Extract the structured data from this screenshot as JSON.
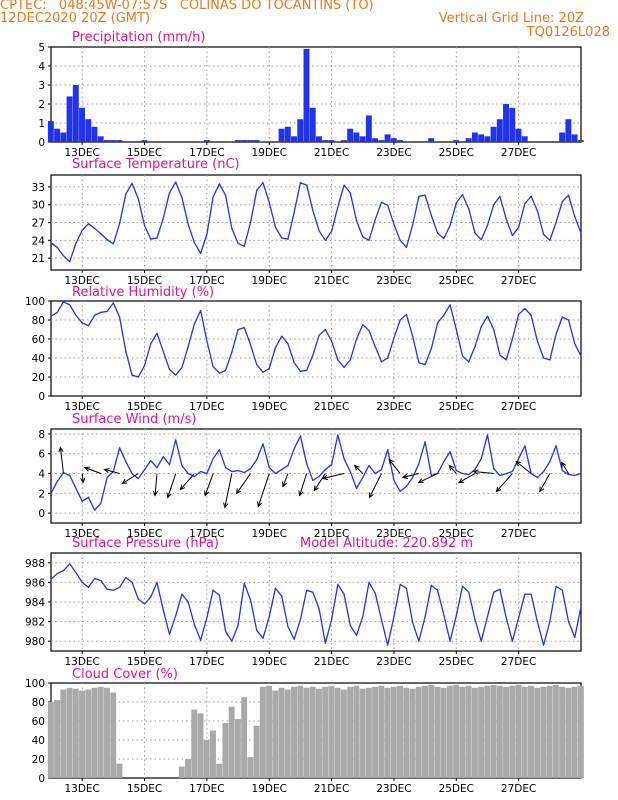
{
  "header": {
    "station_line": "CPTEC:   048:45W-07:57S   COLINAS DO TOCANTINS (TO)",
    "run_line": "12DEC2020 20Z (GMT)",
    "grid_line": "Vertical Grid Line: 20Z",
    "model_code": "TQ0126L028"
  },
  "colors": {
    "header": "#e8781e",
    "title": "#e0148c",
    "series": "#2233ee",
    "cloud": "#a9a9a9",
    "arrows": "#000000",
    "grid": "#9a9a9a"
  },
  "x_axis": {
    "tick_labels": [
      "13DEC",
      "15DEC",
      "17DEC",
      "19DEC",
      "21DEC",
      "23DEC",
      "25DEC",
      "27DEC"
    ]
  },
  "chart_data": [
    {
      "type": "bar",
      "title": "Precipitation (mm/h)",
      "ylim": [
        0,
        5
      ],
      "yticks": [
        0,
        1,
        2,
        3,
        4,
        5
      ],
      "color": "#2233ee",
      "x": [
        0.0,
        0.2,
        0.4,
        0.6,
        0.8,
        1.0,
        1.2,
        1.4,
        1.6,
        1.8,
        2.0,
        2.2,
        3.0,
        5.0,
        6.0,
        6.2,
        6.4,
        6.6,
        7.4,
        7.6,
        7.8,
        8.0,
        8.2,
        8.4,
        8.6,
        8.8,
        9.0,
        9.4,
        9.6,
        9.8,
        10.0,
        10.2,
        10.4,
        10.6,
        10.8,
        11.0,
        11.2,
        12.2,
        13.0,
        13.4,
        13.6,
        13.8,
        14.0,
        14.2,
        14.4,
        14.6,
        14.8,
        15.0,
        15.2,
        16.4,
        16.6,
        16.8,
        17.0
      ],
      "values": [
        1.1,
        0.7,
        0.5,
        2.4,
        3.0,
        1.8,
        1.2,
        0.8,
        0.3,
        0.1,
        0.1,
        0.1,
        0.1,
        0.1,
        0.1,
        0.1,
        0.1,
        0.1,
        0.7,
        0.8,
        0.3,
        1.2,
        4.9,
        1.8,
        0.3,
        0.1,
        0.1,
        0.1,
        0.7,
        0.5,
        0.3,
        1.4,
        0.2,
        0.1,
        0.4,
        0.2,
        0.1,
        0.2,
        0.1,
        0.2,
        0.5,
        0.4,
        0.3,
        0.8,
        1.2,
        2.0,
        1.8,
        0.7,
        0.3,
        0.5,
        1.2,
        0.4,
        0.1
      ]
    },
    {
      "type": "line",
      "title": "Surface Temperature (nC)",
      "ylim": [
        19,
        35
      ],
      "yticks": [
        21,
        24,
        27,
        30,
        33
      ],
      "color": "#2233ee",
      "x": [
        0.0,
        0.2,
        0.4,
        0.6,
        0.8,
        1.0,
        1.2,
        1.4,
        1.6,
        1.8,
        2.0,
        2.2,
        2.4,
        2.6,
        2.8,
        3.0,
        3.2,
        3.4,
        3.6,
        3.8,
        4.0,
        4.2,
        4.4,
        4.6,
        4.8,
        5.0,
        5.2,
        5.4,
        5.6,
        5.8,
        6.0,
        6.2,
        6.4,
        6.6,
        6.8,
        7.0,
        7.2,
        7.4,
        7.6,
        7.8,
        8.0,
        8.2,
        8.4,
        8.6,
        8.8,
        9.0,
        9.2,
        9.4,
        9.6,
        9.8,
        10.0,
        10.2,
        10.4,
        10.6,
        10.8,
        11.0,
        11.2,
        11.4,
        11.6,
        11.8,
        12.0,
        12.2,
        12.4,
        12.6,
        12.8,
        13.0,
        13.2,
        13.4,
        13.6,
        13.8,
        14.0,
        14.2,
        14.4,
        14.6,
        14.8,
        15.0,
        15.2,
        15.4,
        15.6,
        15.8,
        16.0,
        16.2,
        16.4,
        16.6,
        16.8,
        17.0
      ],
      "values": [
        23.6,
        22.8,
        21.4,
        20.4,
        23.5,
        25.7,
        26.8,
        26.0,
        25.1,
        24.1,
        23.4,
        26.8,
        31.8,
        33.6,
        31.0,
        26.5,
        24.2,
        24.4,
        27.7,
        32.0,
        33.8,
        31.2,
        26.7,
        23.6,
        21.8,
        25.0,
        31.3,
        33.5,
        31.6,
        26.0,
        23.5,
        23.0,
        27.0,
        32.4,
        33.7,
        30.4,
        26.2,
        24.4,
        24.2,
        28.7,
        33.7,
        33.3,
        29.0,
        25.6,
        24.0,
        25.5,
        29.6,
        33.3,
        32.0,
        27.3,
        24.6,
        24.0,
        27.5,
        30.4,
        29.9,
        26.7,
        24.0,
        22.8,
        26.6,
        31.4,
        31.6,
        28.2,
        25.2,
        24.3,
        26.5,
        30.3,
        31.7,
        29.3,
        25.2,
        24.1,
        26.5,
        30.0,
        31.4,
        27.6,
        24.8,
        26.2,
        30.2,
        31.4,
        29.0,
        25.0,
        24.0,
        27.0,
        30.5,
        31.6,
        28.0,
        25.2
      ]
    },
    {
      "type": "line",
      "title": "Relative Humidity (%)",
      "ylim": [
        0,
        100
      ],
      "yticks": [
        0,
        20,
        40,
        60,
        80,
        100
      ],
      "color": "#2233ee",
      "x": [
        0.0,
        0.2,
        0.4,
        0.6,
        0.8,
        1.0,
        1.2,
        1.4,
        1.6,
        1.8,
        2.0,
        2.2,
        2.4,
        2.6,
        2.8,
        3.0,
        3.2,
        3.4,
        3.6,
        3.8,
        4.0,
        4.2,
        4.4,
        4.6,
        4.8,
        5.0,
        5.2,
        5.4,
        5.6,
        5.8,
        6.0,
        6.2,
        6.4,
        6.6,
        6.8,
        7.0,
        7.2,
        7.4,
        7.6,
        7.8,
        8.0,
        8.2,
        8.4,
        8.6,
        8.8,
        9.0,
        9.2,
        9.4,
        9.6,
        9.8,
        10.0,
        10.2,
        10.4,
        10.6,
        10.8,
        11.0,
        11.2,
        11.4,
        11.6,
        11.8,
        12.0,
        12.2,
        12.4,
        12.6,
        12.8,
        13.0,
        13.2,
        13.4,
        13.6,
        13.8,
        14.0,
        14.2,
        14.4,
        14.6,
        14.8,
        15.0,
        15.2,
        15.4,
        15.6,
        15.8,
        16.0,
        16.2,
        16.4,
        16.6,
        16.8,
        17.0
      ],
      "values": [
        84,
        88,
        99,
        96,
        85,
        77,
        74,
        85,
        88,
        89,
        98,
        83,
        47,
        22,
        20,
        32,
        55,
        66,
        47,
        28,
        22,
        30,
        52,
        76,
        90,
        58,
        31,
        24,
        27,
        46,
        70,
        72,
        54,
        33,
        25,
        29,
        51,
        63,
        55,
        35,
        26,
        27,
        43,
        64,
        70,
        58,
        38,
        30,
        38,
        60,
        75,
        69,
        52,
        36,
        40,
        61,
        80,
        86,
        63,
        35,
        33,
        50,
        77,
        85,
        96,
        70,
        42,
        36,
        52,
        73,
        84,
        70,
        43,
        38,
        60,
        86,
        92,
        85,
        58,
        40,
        38,
        65,
        83,
        80,
        55,
        42
      ]
    },
    {
      "type": "line",
      "title": "Surface Wind (m/s)",
      "ylim": [
        -1,
        8.5
      ],
      "yticks": [
        0,
        2,
        4,
        6,
        8
      ],
      "color": "#2233ee",
      "x": [
        0.0,
        0.2,
        0.4,
        0.6,
        0.8,
        1.0,
        1.2,
        1.4,
        1.6,
        1.8,
        2.0,
        2.2,
        2.4,
        2.6,
        2.8,
        3.0,
        3.2,
        3.4,
        3.6,
        3.8,
        4.0,
        4.2,
        4.4,
        4.6,
        4.8,
        5.0,
        5.2,
        5.4,
        5.6,
        5.8,
        6.0,
        6.2,
        6.4,
        6.6,
        6.8,
        7.0,
        7.2,
        7.4,
        7.6,
        7.8,
        8.0,
        8.2,
        8.4,
        8.6,
        8.8,
        9.0,
        9.2,
        9.4,
        9.6,
        9.8,
        10.0,
        10.2,
        10.4,
        10.6,
        10.8,
        11.0,
        11.2,
        11.4,
        11.6,
        11.8,
        12.0,
        12.2,
        12.4,
        12.6,
        12.8,
        13.0,
        13.2,
        13.4,
        13.6,
        13.8,
        14.0,
        14.2,
        14.4,
        14.6,
        14.8,
        15.0,
        15.2,
        15.4,
        15.6,
        15.8,
        16.0,
        16.2,
        16.4,
        16.6,
        16.8,
        17.0
      ],
      "values": [
        2.0,
        3.2,
        4.1,
        3.8,
        2.5,
        1.2,
        1.6,
        0.3,
        1.0,
        3.6,
        4.2,
        6.6,
        5.2,
        4.0,
        3.5,
        4.4,
        5.3,
        4.6,
        5.7,
        4.9,
        7.4,
        4.8,
        4.0,
        3.7,
        4.2,
        4.0,
        5.5,
        6.4,
        4.6,
        4.2,
        4.3,
        4.1,
        4.5,
        5.4,
        7.0,
        4.6,
        4.0,
        4.4,
        4.8,
        6.5,
        7.8,
        5.0,
        3.3,
        3.7,
        4.4,
        4.9,
        7.9,
        5.5,
        4.2,
        2.5,
        3.6,
        4.8,
        4.0,
        4.4,
        6.4,
        3.3,
        2.2,
        2.7,
        3.6,
        5.0,
        7.2,
        3.8,
        4.0,
        5.2,
        6.2,
        4.3,
        4.0,
        3.9,
        4.4,
        5.5,
        7.9,
        4.5,
        3.8,
        4.0,
        4.2,
        5.5,
        6.8,
        4.0,
        3.6,
        4.2,
        5.2,
        6.8,
        4.3,
        3.9,
        3.8,
        4.0
      ],
      "wind_vectors": [
        {
          "x": 0.4,
          "u": -0.3,
          "v": 2.6
        },
        {
          "x": 1.0,
          "u": 0.1,
          "v": -0.9
        },
        {
          "x": 1.6,
          "u": -1.6,
          "v": 0.6
        },
        {
          "x": 2.2,
          "u": -1.5,
          "v": 0.4
        },
        {
          "x": 2.8,
          "u": -1.6,
          "v": -1.0
        },
        {
          "x": 3.4,
          "u": -0.2,
          "v": -2.2
        },
        {
          "x": 4.0,
          "u": -0.8,
          "v": -2.4
        },
        {
          "x": 4.6,
          "u": -1.4,
          "v": -1.6
        },
        {
          "x": 5.2,
          "u": -0.8,
          "v": -2.2
        },
        {
          "x": 5.8,
          "u": -0.7,
          "v": -3.4
        },
        {
          "x": 6.4,
          "u": -1.4,
          "v": -2.0
        },
        {
          "x": 7.0,
          "u": -1.1,
          "v": -3.3
        },
        {
          "x": 7.6,
          "u": -0.5,
          "v": -1.3
        },
        {
          "x": 8.2,
          "u": -0.7,
          "v": -2.2
        },
        {
          "x": 8.8,
          "u": -1.1,
          "v": -1.7
        },
        {
          "x": 9.4,
          "u": -2.1,
          "v": -0.5
        },
        {
          "x": 10.0,
          "u": -0.8,
          "v": 0.8
        },
        {
          "x": 10.6,
          "u": -1.2,
          "v": -2.4
        },
        {
          "x": 11.2,
          "u": -1.1,
          "v": 1.4
        },
        {
          "x": 11.8,
          "u": -1.6,
          "v": -0.4
        },
        {
          "x": 12.4,
          "u": -1.9,
          "v": -0.9
        },
        {
          "x": 13.0,
          "u": -0.7,
          "v": 0.8
        },
        {
          "x": 13.6,
          "u": -1.6,
          "v": -0.9
        },
        {
          "x": 14.2,
          "u": -2.0,
          "v": 0.2
        },
        {
          "x": 14.8,
          "u": -1.6,
          "v": -1.8
        },
        {
          "x": 15.4,
          "u": -1.5,
          "v": 1.2
        },
        {
          "x": 16.0,
          "u": -1.0,
          "v": -1.8
        },
        {
          "x": 16.6,
          "u": -0.7,
          "v": 1.1
        }
      ]
    },
    {
      "type": "line",
      "title": "Surface Pressure (hPa)",
      "subtitle": "Model Altitude: 220.892 m",
      "ylim": [
        979.0,
        989.0
      ],
      "yticks": [
        980,
        982,
        984,
        986,
        988
      ],
      "color": "#2233ee",
      "x": [
        0.0,
        0.2,
        0.4,
        0.6,
        0.8,
        1.0,
        1.2,
        1.4,
        1.6,
        1.8,
        2.0,
        2.2,
        2.4,
        2.6,
        2.8,
        3.0,
        3.2,
        3.4,
        3.6,
        3.8,
        4.0,
        4.2,
        4.4,
        4.6,
        4.8,
        5.0,
        5.2,
        5.4,
        5.6,
        5.8,
        6.0,
        6.2,
        6.4,
        6.6,
        6.8,
        7.0,
        7.2,
        7.4,
        7.6,
        7.8,
        8.0,
        8.2,
        8.4,
        8.6,
        8.8,
        9.0,
        9.2,
        9.4,
        9.6,
        9.8,
        10.0,
        10.2,
        10.4,
        10.6,
        10.8,
        11.0,
        11.2,
        11.4,
        11.6,
        11.8,
        12.0,
        12.2,
        12.4,
        12.6,
        12.8,
        13.0,
        13.2,
        13.4,
        13.6,
        13.8,
        14.0,
        14.2,
        14.4,
        14.6,
        14.8,
        15.0,
        15.2,
        15.4,
        15.6,
        15.8,
        16.0,
        16.2,
        16.4,
        16.6,
        16.8,
        17.0
      ],
      "values": [
        986.3,
        986.9,
        987.2,
        987.9,
        987.0,
        986.0,
        985.5,
        986.4,
        986.2,
        985.3,
        985.2,
        985.5,
        986.5,
        986.0,
        984.3,
        983.8,
        984.5,
        986.0,
        983.2,
        980.7,
        982.6,
        984.8,
        984.0,
        981.7,
        980.1,
        982.4,
        985.2,
        984.7,
        981.0,
        980.0,
        981.6,
        985.9,
        984.2,
        981.1,
        980.3,
        982.5,
        985.4,
        984.6,
        981.5,
        980.2,
        982.2,
        985.2,
        985.0,
        983.3,
        979.8,
        982.2,
        985.8,
        984.8,
        981.6,
        980.6,
        982.5,
        986.0,
        984.9,
        982.2,
        979.6,
        982.5,
        985.8,
        985.4,
        981.9,
        980.0,
        982.5,
        985.7,
        985.2,
        982.7,
        980.0,
        982.6,
        985.6,
        985.0,
        982.2,
        980.0,
        982.5,
        985.0,
        985.3,
        982.4,
        980.0,
        982.4,
        984.8,
        984.8,
        982.0,
        979.6,
        982.0,
        985.6,
        985.2,
        982.0,
        980.4,
        983.5
      ]
    },
    {
      "type": "bar",
      "title": "Cloud Cover (%)",
      "ylim": [
        0,
        100
      ],
      "yticks": [
        0,
        20,
        40,
        60,
        80,
        100
      ],
      "color": "#a9a9a9",
      "x": [
        0.0,
        0.2,
        0.4,
        0.6,
        0.8,
        1.0,
        1.2,
        1.4,
        1.6,
        1.8,
        2.0,
        2.2,
        2.4,
        2.6,
        2.8,
        3.0,
        3.2,
        3.4,
        3.6,
        3.8,
        4.0,
        4.2,
        4.4,
        4.6,
        4.8,
        5.0,
        5.2,
        5.4,
        5.6,
        5.8,
        6.0,
        6.2,
        6.4,
        6.6,
        6.8,
        7.0,
        7.2,
        7.4,
        7.6,
        7.8,
        8.0,
        8.2,
        8.4,
        8.6,
        8.8,
        9.0,
        9.2,
        9.4,
        9.6,
        9.8,
        10.0,
        10.2,
        10.4,
        10.6,
        10.8,
        11.0,
        11.2,
        11.4,
        11.6,
        11.8,
        12.0,
        12.2,
        12.4,
        12.6,
        12.8,
        13.0,
        13.2,
        13.4,
        13.6,
        13.8,
        14.0,
        14.2,
        14.4,
        14.6,
        14.8,
        15.0,
        15.2,
        15.4,
        15.6,
        15.8,
        16.0,
        16.2,
        16.4,
        16.6,
        16.8,
        17.0
      ],
      "values": [
        80,
        82,
        93,
        95,
        94,
        92,
        93,
        95,
        96,
        95,
        90,
        15,
        0,
        0,
        0,
        0,
        0,
        0,
        0,
        0,
        0,
        12,
        20,
        72,
        68,
        40,
        50,
        15,
        58,
        75,
        62,
        85,
        22,
        55,
        96,
        97,
        92,
        95,
        93,
        96,
        97,
        95,
        96,
        94,
        96,
        97,
        95,
        93,
        96,
        97,
        94,
        95,
        96,
        97,
        95,
        96,
        97,
        95,
        94,
        96,
        97,
        98,
        96,
        95,
        97,
        98,
        96,
        97,
        95,
        96,
        97,
        98,
        97,
        96,
        97,
        98,
        96,
        97,
        95,
        96,
        97,
        98,
        96,
        95,
        96,
        97
      ]
    }
  ]
}
